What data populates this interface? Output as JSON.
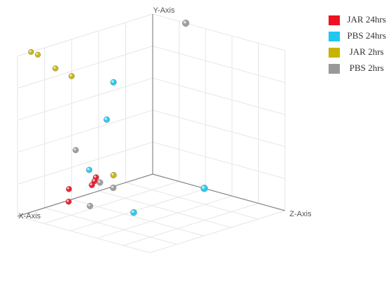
{
  "chart_data": {
    "type": "scatter3d",
    "x_label": "X-Axis",
    "y_label": "Y-Axis",
    "z_label": "Z-Axis",
    "xlim": [
      0,
      10
    ],
    "ylim": [
      0,
      10
    ],
    "zlim": [
      0,
      10
    ],
    "grid": true,
    "legend": "top-right",
    "series": [
      {
        "name": "JAR 24hrs",
        "color": "#ee1122",
        "x": [
          4.2,
          4.3,
          4.5,
          6.2,
          7.2
        ],
        "y": [
          0.9,
          0.7,
          0.5,
          0.7,
          0.4
        ],
        "z": [
          0,
          0,
          0,
          0,
          1
        ]
      },
      {
        "name": "PBS 24hrs",
        "color": "#1ec8f0",
        "x": [
          2.9,
          3.4,
          4.7,
          0,
          6.3
        ],
        "y": [
          6.5,
          4.3,
          1.5,
          0,
          0.4
        ],
        "z": [
          0,
          0,
          0,
          3.9,
          5
        ]
      },
      {
        "name": "JAR 2hrs",
        "color": "#c8b400",
        "x": [
          9.0,
          8.5,
          7.2,
          6.0,
          2.9
        ],
        "y": [
          10,
          9.7,
          8.5,
          7.7,
          0.7
        ],
        "z": [
          0,
          0,
          0,
          0,
          0
        ]
      },
      {
        "name": "PBS 2hrs",
        "color": "#999999",
        "x": [
          0,
          5.7,
          3.9,
          3.9,
          6.6
        ],
        "y": [
          10,
          3.0,
          0.5,
          0.4,
          0.2
        ],
        "z": [
          2.5,
          0,
          0,
          1,
          2
        ]
      }
    ]
  }
}
